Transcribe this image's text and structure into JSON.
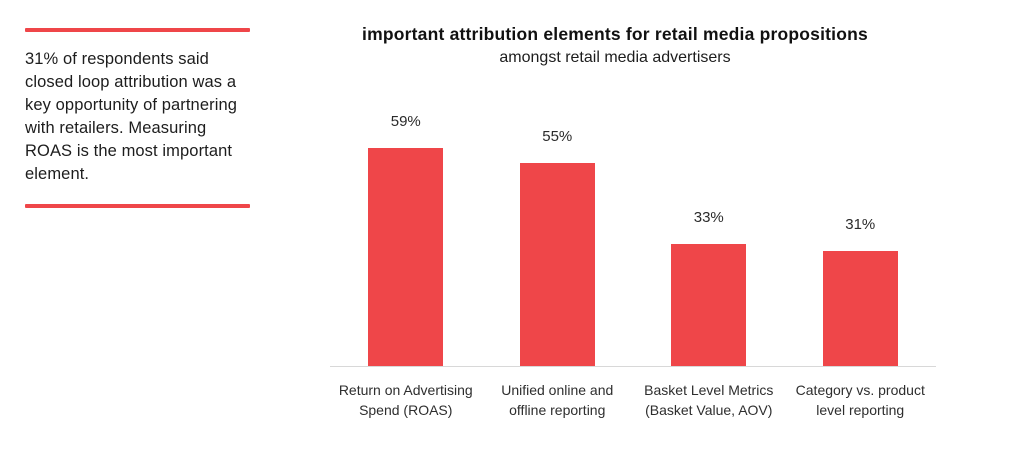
{
  "accent_color": "#ef4649",
  "sidebar": {
    "callout": "31% of respondents said closed loop attribution was a key opportunity of partnering with retailers. Measuring ROAS is the most important element."
  },
  "chart": {
    "title": "important attribution elements for retail media propositions",
    "subtitle": "amongst retail media advertisers"
  },
  "chart_data": {
    "type": "bar",
    "title": "important attribution elements for retail media propositions",
    "subtitle": "amongst retail media advertisers",
    "categories": [
      "Return on Advertising Spend (ROAS)",
      "Unified online and offline reporting",
      "Basket Level Metrics (Basket Value, AOV)",
      "Category vs. product level reporting"
    ],
    "categories_lines": [
      [
        "Return on Advertising",
        "Spend (ROAS)"
      ],
      [
        "Unified online and",
        "offline reporting"
      ],
      [
        "Basket Level Metrics",
        "(Basket Value, AOV)"
      ],
      [
        "Category vs. product",
        "level reporting"
      ]
    ],
    "values": [
      59,
      55,
      33,
      31
    ],
    "value_labels": [
      "59%",
      "55%",
      "33%",
      "31%"
    ],
    "ylim": [
      0,
      100
    ],
    "bar_color": "#ef4649",
    "grid": false,
    "legend": false,
    "xlabel": "",
    "ylabel": ""
  }
}
